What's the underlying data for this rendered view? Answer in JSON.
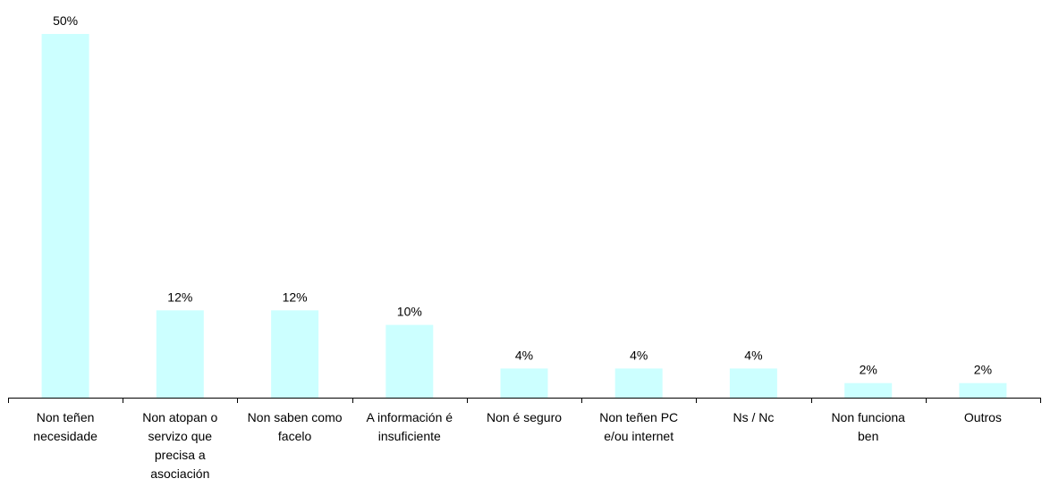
{
  "chart_data": {
    "type": "bar",
    "title": "",
    "xlabel": "",
    "ylabel": "",
    "ylim": [
      0,
      50
    ],
    "grid": false,
    "bar_color": "#ccffff",
    "categories": [
      [
        "Non teñen",
        "necesidade"
      ],
      [
        "Non atopan o",
        "servizo que",
        "precisa a",
        "asociación"
      ],
      [
        "Non saben como",
        "facelo"
      ],
      [
        "A información é",
        "insuficiente"
      ],
      [
        "Non é seguro"
      ],
      [
        "Non teñen PC",
        "e/ou internet"
      ],
      [
        "Ns / Nc"
      ],
      [
        "Non funciona",
        "ben"
      ],
      [
        "Outros"
      ]
    ],
    "values": [
      50,
      12,
      12,
      10,
      4,
      4,
      4,
      2,
      2
    ],
    "value_labels": [
      "50%",
      "12%",
      "12%",
      "10%",
      "4%",
      "4%",
      "4%",
      "2%",
      "2%"
    ]
  }
}
